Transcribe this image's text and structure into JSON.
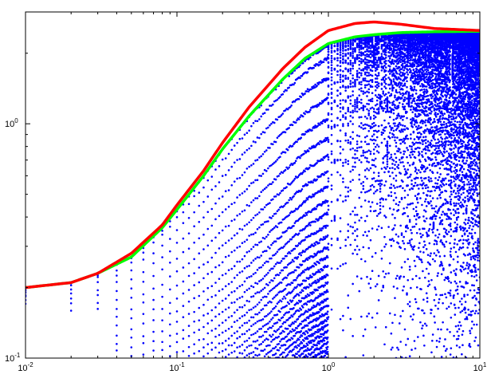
{
  "chart_data": {
    "type": "scatter",
    "title": "",
    "xlabel": "",
    "ylabel": "",
    "xscale": "log",
    "yscale": "log",
    "xlim": [
      0.01,
      10
    ],
    "ylim": [
      0.1,
      3.0
    ],
    "grid": false,
    "x_ticks": [
      {
        "base": "10",
        "exp": "-2",
        "value": 0.01
      },
      {
        "base": "10",
        "exp": "-1",
        "value": 0.1
      },
      {
        "base": "10",
        "exp": "0",
        "value": 1
      },
      {
        "base": "10",
        "exp": "1",
        "value": 10
      }
    ],
    "y_ticks": [
      {
        "base": "10",
        "exp": "-1",
        "value": 0.1
      },
      {
        "base": "10",
        "exp": "0",
        "value": 1
      }
    ],
    "series": [
      {
        "kind": "scatter",
        "color": "#0000ff",
        "description_of_envelope": "many blue dot series below the curves",
        "lower_bound_pattern": "fans out below the green curve; deep notches for x > 1"
      },
      {
        "kind": "line",
        "color": "#00ff00",
        "x": [
          0.01,
          0.02,
          0.03,
          0.05,
          0.08,
          0.1,
          0.15,
          0.2,
          0.3,
          0.5,
          0.7,
          1.0,
          1.5,
          2.0,
          3.0,
          5.0,
          10.0
        ],
        "y": [
          0.2,
          0.21,
          0.23,
          0.27,
          0.36,
          0.43,
          0.6,
          0.78,
          1.08,
          1.55,
          1.9,
          2.2,
          2.35,
          2.4,
          2.45,
          2.47,
          2.48
        ]
      },
      {
        "kind": "line",
        "color": "#ff0000",
        "x": [
          0.01,
          0.02,
          0.03,
          0.05,
          0.08,
          0.1,
          0.15,
          0.2,
          0.3,
          0.5,
          0.7,
          1.0,
          1.5,
          2.0,
          3.0,
          5.0,
          10.0
        ],
        "y": [
          0.2,
          0.21,
          0.23,
          0.28,
          0.37,
          0.45,
          0.63,
          0.83,
          1.18,
          1.72,
          2.12,
          2.5,
          2.68,
          2.72,
          2.66,
          2.55,
          2.5
        ]
      }
    ]
  }
}
